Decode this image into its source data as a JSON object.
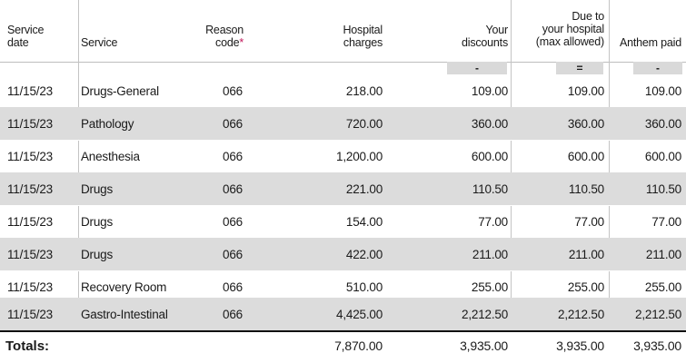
{
  "headers": {
    "service_date": [
      "Service",
      "date"
    ],
    "service": "Service",
    "reason_code": [
      "Reason",
      "code"
    ],
    "reason_marker": "*",
    "hospital_charges": [
      "Hospital",
      "charges"
    ],
    "your_discounts": [
      "Your",
      "discounts"
    ],
    "due_to_hospital": [
      "Due to",
      "your hospital",
      "(max allowed)"
    ],
    "anthem_paid": "Anthem paid"
  },
  "operators": {
    "your_discounts": "-",
    "due_to_hospital": "=",
    "anthem_paid": "-"
  },
  "rows": [
    {
      "date": "11/15/23",
      "service": "Drugs-General",
      "code": "066",
      "charges": "218.00",
      "discounts": "109.00",
      "due": "109.00",
      "paid": "109.00"
    },
    {
      "date": "11/15/23",
      "service": "Pathology",
      "code": "066",
      "charges": "720.00",
      "discounts": "360.00",
      "due": "360.00",
      "paid": "360.00"
    },
    {
      "date": "11/15/23",
      "service": "Anesthesia",
      "code": "066",
      "charges": "1,200.00",
      "discounts": "600.00",
      "due": "600.00",
      "paid": "600.00"
    },
    {
      "date": "11/15/23",
      "service": "Drugs",
      "code": "066",
      "charges": "221.00",
      "discounts": "110.50",
      "due": "110.50",
      "paid": "110.50"
    },
    {
      "date": "11/15/23",
      "service": "Drugs",
      "code": "066",
      "charges": "154.00",
      "discounts": "77.00",
      "due": "77.00",
      "paid": "77.00"
    },
    {
      "date": "11/15/23",
      "service": "Drugs",
      "code": "066",
      "charges": "422.00",
      "discounts": "211.00",
      "due": "211.00",
      "paid": "211.00"
    },
    {
      "date": "11/15/23",
      "service": "Recovery Room",
      "code": "066",
      "charges": "510.00",
      "discounts": "255.00",
      "due": "255.00",
      "paid": "255.00"
    },
    {
      "date": "11/15/23",
      "service": "Gastro-Intestinal",
      "code": "066",
      "charges": "4,425.00",
      "discounts": "2,212.50",
      "due": "2,212.50",
      "paid": "2,212.50"
    }
  ],
  "totals": {
    "label": "Totals:",
    "charges": "7,870.00",
    "discounts": "3,935.00",
    "due": "3,935.00",
    "paid": "3,935.00"
  }
}
